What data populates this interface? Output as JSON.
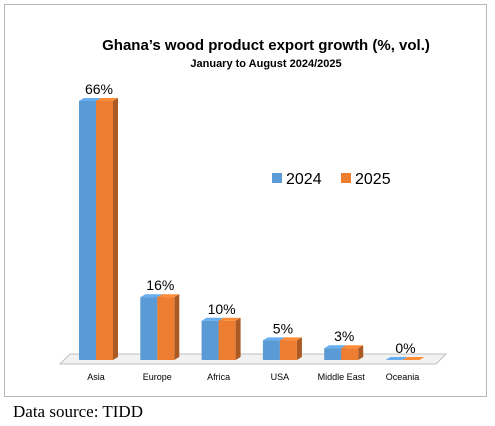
{
  "chart_data": {
    "type": "bar",
    "style": "3d-clustered-column",
    "title": "Ghana’s wood product export growth (%, vol.)",
    "subtitle": "January to August 2024/2025",
    "categories": [
      "Asia",
      "Europe",
      "Africa",
      "USA",
      "Middle East",
      "Oceania"
    ],
    "series": [
      {
        "name": "2024",
        "color": "#5b9bd5",
        "values": [
          66,
          16,
          10,
          5,
          3,
          0
        ]
      },
      {
        "name": "2025",
        "color": "#ed7d31",
        "values": [
          66,
          16,
          10,
          5,
          3,
          0
        ]
      }
    ],
    "data_labels": [
      "66%",
      "16%",
      "10%",
      "5%",
      "3%",
      "0%"
    ],
    "ylim": [
      0,
      66
    ],
    "grid": false,
    "legend_position": "right"
  },
  "footer": {
    "source": "Data source: TIDD"
  }
}
